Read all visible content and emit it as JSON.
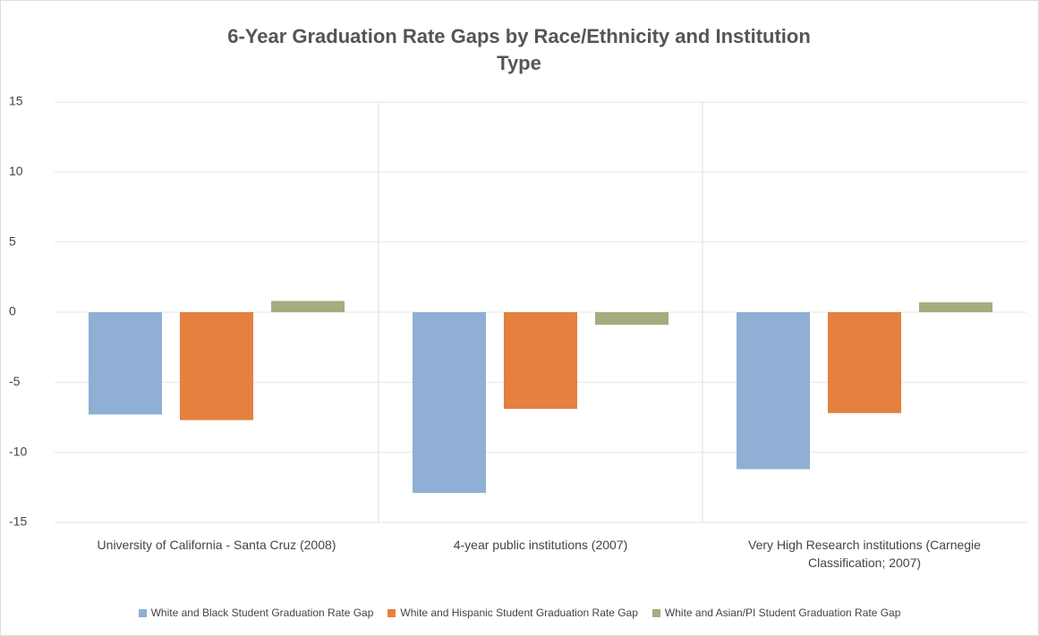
{
  "chart_data": {
    "type": "bar",
    "title": "6-Year Graduation Rate Gaps by Race/Ethnicity and Institution Type",
    "categories": [
      "University of California - Santa Cruz (2008)",
      "4-year public institutions (2007)",
      "Very High Research institutions (Carnegie Classification; 2007)"
    ],
    "series": [
      {
        "name": "White and Black Student Graduation Rate Gap",
        "color": "#8fb0d4",
        "values": [
          -7.3,
          -12.9,
          -11.2
        ]
      },
      {
        "name": "White and Hispanic Student Graduation Rate Gap",
        "color": "#e5803f",
        "values": [
          -7.7,
          -6.9,
          -7.2
        ]
      },
      {
        "name": "White and Asian/PI Student Graduation Rate Gap",
        "color": "#a3ad7f",
        "values": [
          0.8,
          -0.9,
          0.7
        ]
      }
    ],
    "ylim": [
      -15,
      15
    ],
    "yticks": [
      -15,
      -10,
      -5,
      0,
      5,
      10,
      15
    ],
    "grid": true
  }
}
